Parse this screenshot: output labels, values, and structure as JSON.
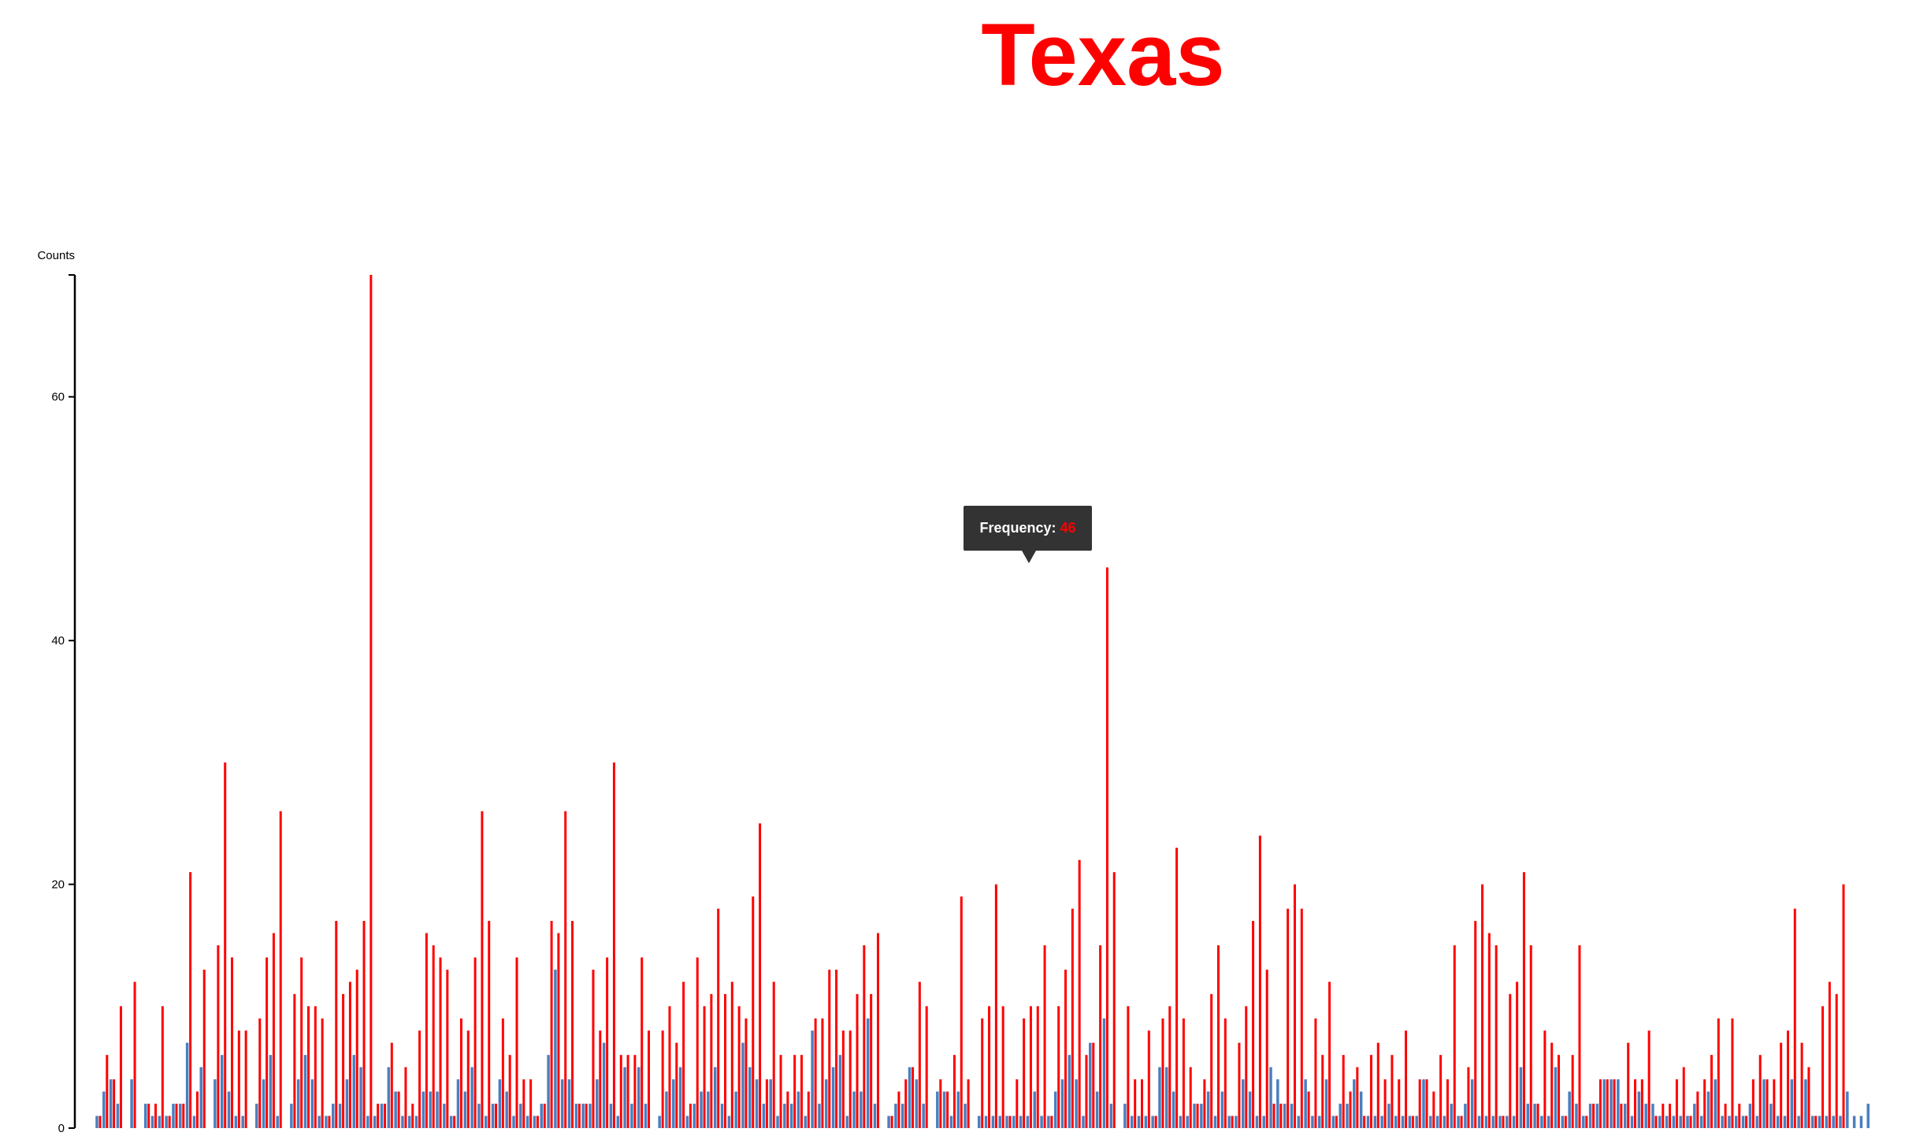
{
  "title": "Texas",
  "tooltip": {
    "label": "Frequency:",
    "value": "46"
  },
  "colors": {
    "accent": "#ff0000",
    "secondary": "#4a7fc1",
    "tooltip_bg": "#333333"
  },
  "chart_data": {
    "type": "bar",
    "title": "Texas",
    "ylabel": "Counts",
    "xlabel": "",
    "ylim": [
      0,
      70
    ],
    "yticks": [
      0,
      20,
      40,
      60
    ],
    "grid": false,
    "series": [
      {
        "values": [
          1,
          6,
          4,
          10,
          0,
          12,
          0,
          2,
          2,
          10,
          1,
          2,
          2,
          21,
          3,
          13,
          0,
          15,
          30,
          14,
          8,
          8,
          0,
          9,
          14,
          16,
          26,
          0,
          11,
          14,
          10,
          10,
          9,
          1,
          17,
          11,
          12,
          13,
          17,
          70,
          2,
          2,
          7,
          3,
          5,
          2,
          8,
          16,
          15,
          14,
          13,
          1,
          9,
          8,
          14,
          26,
          17,
          2,
          9,
          6,
          14,
          4,
          4,
          1,
          2,
          17,
          16,
          26,
          17,
          2,
          2,
          13,
          8,
          14,
          30,
          6,
          6,
          6,
          14,
          8,
          0,
          8,
          10,
          7,
          12,
          2,
          14,
          10,
          11,
          18,
          11,
          12,
          10,
          9,
          19,
          25,
          4,
          12,
          6,
          3,
          6,
          6,
          3,
          9,
          9,
          13,
          13,
          8,
          8,
          11,
          15,
          11,
          16,
          0,
          1,
          3,
          4,
          5,
          12,
          10,
          0,
          4,
          3,
          6,
          19,
          4,
          0,
          9,
          10,
          20,
          10,
          1,
          4,
          9,
          10,
          10,
          15,
          1,
          10,
          13,
          18,
          22,
          6,
          7,
          15,
          46,
          21,
          0,
          10,
          4,
          4,
          8,
          1,
          9,
          10,
          23,
          9,
          5,
          2,
          4,
          11,
          15,
          9,
          1,
          7,
          10,
          17,
          24,
          13,
          2,
          2,
          18,
          20,
          18,
          3,
          9,
          6,
          12,
          1,
          6,
          3,
          5,
          1,
          6,
          7,
          4,
          6,
          4,
          8,
          1,
          4,
          4,
          3,
          6,
          4,
          15,
          1,
          5,
          17,
          20,
          16,
          15,
          1,
          11,
          12,
          21,
          15,
          2,
          8,
          7,
          6,
          1,
          6,
          15,
          1,
          2,
          4,
          4,
          4,
          2,
          7,
          4,
          4,
          8,
          1,
          2,
          2,
          4,
          5,
          1,
          3,
          4,
          6,
          9,
          2,
          9,
          2,
          1,
          4,
          6,
          4,
          4,
          7,
          8,
          18,
          7,
          5,
          1,
          10,
          12,
          11,
          20
        ],
        "color": "#ff0000"
      },
      {
        "values": [
          1,
          3,
          4,
          2,
          0,
          4,
          0,
          2,
          1,
          1,
          1,
          2,
          2,
          7,
          1,
          5,
          0,
          4,
          6,
          3,
          1,
          1,
          0,
          2,
          4,
          6,
          1,
          0,
          2,
          4,
          6,
          4,
          1,
          1,
          2,
          2,
          4,
          6,
          5,
          1,
          1,
          2,
          5,
          3,
          1,
          1,
          1,
          3,
          3,
          3,
          2,
          1,
          4,
          3,
          5,
          2,
          1,
          2,
          4,
          3,
          1,
          2,
          1,
          1,
          2,
          6,
          13,
          4,
          4,
          2,
          2,
          2,
          4,
          7,
          2,
          1,
          5,
          2,
          5,
          2,
          0,
          1,
          3,
          4,
          5,
          1,
          2,
          3,
          3,
          5,
          2,
          1,
          3,
          7,
          5,
          4,
          2,
          4,
          1,
          2,
          2,
          3,
          1,
          8,
          2,
          4,
          5,
          6,
          1,
          3,
          3,
          9,
          2,
          0,
          1,
          2,
          2,
          5,
          4,
          2,
          0,
          3,
          3,
          1,
          3,
          2,
          0,
          1,
          1,
          1,
          1,
          1,
          1,
          1,
          1,
          3,
          1,
          1,
          3,
          4,
          6,
          4,
          1,
          7,
          3,
          9,
          2,
          0,
          2,
          1,
          1,
          1,
          1,
          5,
          5,
          3,
          1,
          1,
          2,
          2,
          3,
          1,
          3,
          1,
          1,
          4,
          3,
          1,
          1,
          5,
          4,
          2,
          2,
          1,
          4,
          1,
          1,
          4,
          1,
          2,
          2,
          4,
          3,
          1,
          1,
          1,
          2,
          1,
          1,
          1,
          1,
          4,
          1,
          1,
          1,
          2,
          1,
          2,
          4,
          1,
          1,
          1,
          1,
          1,
          1,
          5,
          2,
          2,
          1,
          1,
          5,
          1,
          3,
          2,
          1,
          2,
          2,
          4,
          4,
          4,
          2,
          1,
          3,
          2,
          2,
          1,
          1,
          1,
          1,
          1,
          2,
          1,
          3,
          4,
          1,
          1,
          1,
          1,
          2,
          1,
          4,
          2,
          1,
          1,
          4,
          1,
          4,
          1,
          1,
          1,
          1,
          1,
          3,
          1,
          1,
          2
        ],
        "color": "#4a7fc1"
      }
    ]
  }
}
